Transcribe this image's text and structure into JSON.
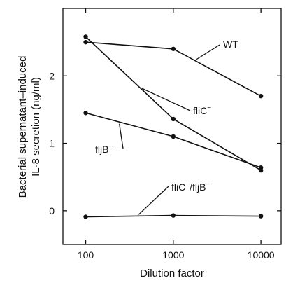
{
  "chart_data": {
    "type": "line",
    "x_scale": "log",
    "x": [
      100,
      1000,
      10000
    ],
    "xlabel": "Dilution factor",
    "ylabel_line1": "Bacterial supernatant–induced",
    "ylabel_line2": "IL-8 secretion (ng/ml)",
    "xlim": [
      55,
      17000
    ],
    "ylim": [
      -0.5,
      3.0
    ],
    "x_ticks": [
      {
        "value": 100,
        "label": "100"
      },
      {
        "value": 1000,
        "label": "1000"
      },
      {
        "value": 10000,
        "label": "10000"
      }
    ],
    "y_ticks": [
      {
        "value": 0,
        "label": "0"
      },
      {
        "value": 1,
        "label": "1"
      },
      {
        "value": 2,
        "label": "2"
      }
    ],
    "grid": false,
    "series": [
      {
        "name": "WT",
        "name_sup": "",
        "values": [
          2.5,
          2.4,
          1.7
        ]
      },
      {
        "name": "fliC",
        "name_sup": "−",
        "values": [
          2.58,
          1.36,
          0.6
        ]
      },
      {
        "name": "fljB",
        "name_sup": "−",
        "values": [
          1.45,
          1.1,
          0.64
        ]
      },
      {
        "name": "fliC",
        "name_sup": "−",
        "name_part2": "/fljB",
        "name_part2_sup": "−",
        "values": [
          -0.09,
          -0.07,
          -0.08
        ]
      }
    ]
  }
}
